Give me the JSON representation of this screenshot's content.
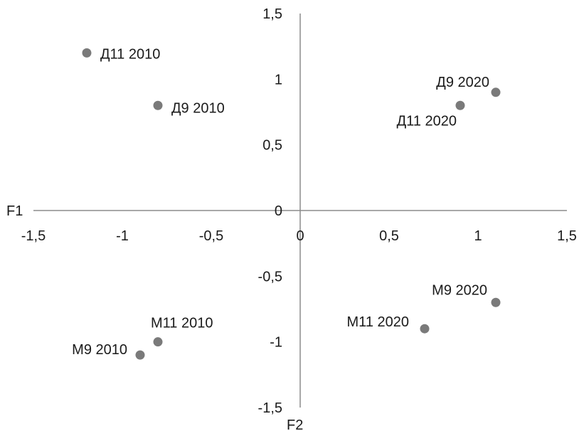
{
  "chart_data": {
    "type": "scatter",
    "xlabel": "F1",
    "ylabel": "F2",
    "xlim": [
      -1.5,
      1.5
    ],
    "ylim": [
      -1.5,
      1.5
    ],
    "grid": false,
    "xticks": [
      {
        "value": -1.5,
        "label": "-1,5"
      },
      {
        "value": -1,
        "label": "-1"
      },
      {
        "value": -0.5,
        "label": "-0,5"
      },
      {
        "value": 0,
        "label": "0"
      },
      {
        "value": 0.5,
        "label": "0,5"
      },
      {
        "value": 1,
        "label": "1"
      },
      {
        "value": 1.5,
        "label": "1,5"
      }
    ],
    "yticks": [
      {
        "value": 1.5,
        "label": "1,5"
      },
      {
        "value": 1,
        "label": "1"
      },
      {
        "value": 0.5,
        "label": "0,5"
      },
      {
        "value": 0,
        "label": "0"
      },
      {
        "value": -0.5,
        "label": "-0,5"
      },
      {
        "value": -1,
        "label": "-1"
      },
      {
        "value": -1.5,
        "label": "-1,5"
      }
    ],
    "point_color": "#7a7a7a",
    "points": [
      {
        "x": -1.2,
        "y": 1.2,
        "label": "Д11 2010"
      },
      {
        "x": -0.8,
        "y": 0.8,
        "label": "Д9 2010"
      },
      {
        "x": 1.1,
        "y": 0.9,
        "label": "Д9 2020"
      },
      {
        "x": 0.9,
        "y": 0.8,
        "label": "Д11 2020"
      },
      {
        "x": 1.1,
        "y": -0.7,
        "label": "М9 2020"
      },
      {
        "x": 0.7,
        "y": -0.9,
        "label": "М11 2020"
      },
      {
        "x": -0.8,
        "y": -1.0,
        "label": "М11 2010"
      },
      {
        "x": -0.9,
        "y": -1.1,
        "label": "М9 2010"
      }
    ]
  }
}
